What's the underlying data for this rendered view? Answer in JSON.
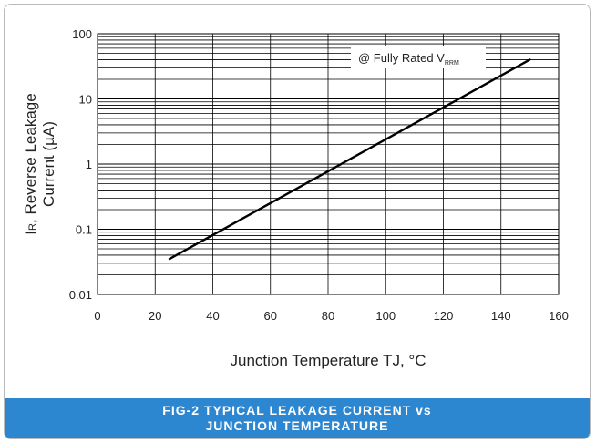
{
  "chart_data": {
    "type": "line",
    "title": "",
    "xlabel": "Junction Temperature TJ, °C",
    "ylabel_line1": "I",
    "ylabel_sub": "R",
    "ylabel_line1_rest": ", Reverse Leakage",
    "ylabel_line2": "Current (µA)",
    "xlim": [
      0,
      160
    ],
    "ylim": [
      0.01,
      100
    ],
    "y_scale": "log",
    "grid": true,
    "x_ticks": [
      "0",
      "20",
      "40",
      "60",
      "80",
      "100",
      "120",
      "140",
      "160"
    ],
    "y_ticks": [
      "0.01",
      "0.1",
      "1",
      "10",
      "100"
    ],
    "annotation": {
      "text": "@ Fully Rated V",
      "sub": "RRM",
      "position": "top-right"
    },
    "series": [
      {
        "x": [
          25,
          150
        ],
        "y": [
          0.035,
          40
        ]
      }
    ]
  },
  "caption": {
    "line1": "FIG-2 TYPICAL LEAKAGE CURRENT vs",
    "line2": "JUNCTION TEMPERATURE"
  }
}
